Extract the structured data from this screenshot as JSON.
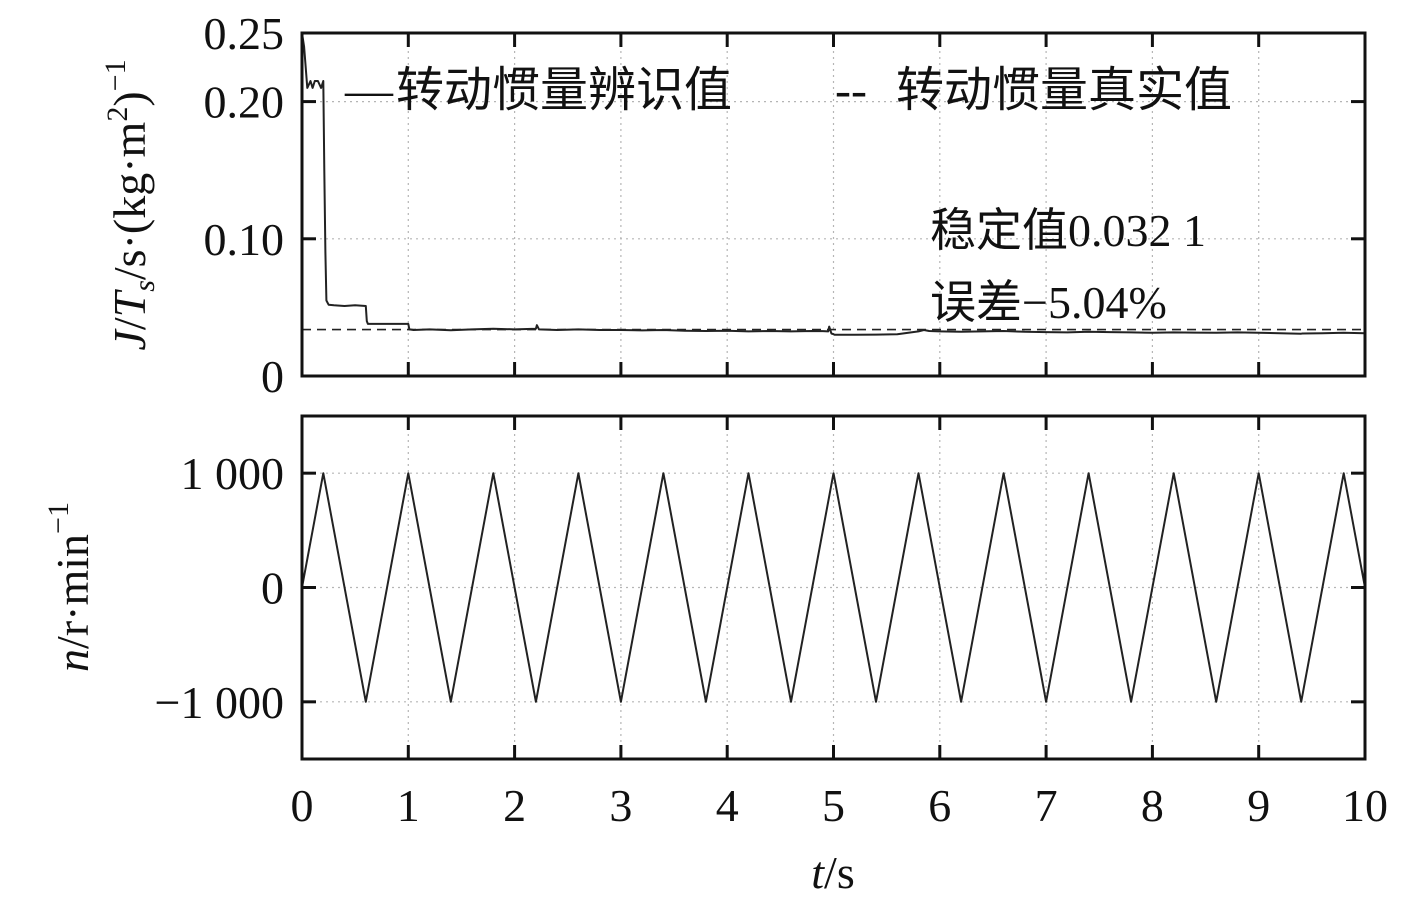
{
  "chart_data": [
    {
      "type": "line",
      "ylabel": "J/Ts/s·(kg·m2)−1",
      "ylabel_parts": {
        "j": "J",
        "slash1": "/",
        "t": "T",
        "t_sub": "s",
        "rest": "/s·(kg·m",
        "sq": "2",
        "close": ")",
        "inv": "−1"
      },
      "xlim": [
        0,
        10
      ],
      "ylim": [
        0,
        0.25
      ],
      "yticks": [
        {
          "value": 0,
          "label": "0"
        },
        {
          "value": 0.1,
          "label": "0.10"
        },
        {
          "value": 0.2,
          "label": "0.20"
        },
        {
          "value": 0.25,
          "label": "0.25"
        }
      ],
      "grid": true,
      "legend": {
        "placement": "top",
        "entries": [
          {
            "symbol": "—",
            "label": "转动惯量辨识值",
            "style": "solid"
          },
          {
            "symbol": "--",
            "label": "转动惯量真实值",
            "style": "dashed"
          }
        ]
      },
      "annotations": [
        "稳定值0.032 1",
        "误差−5.04%"
      ],
      "series": [
        {
          "style": "solid",
          "x": [
            0,
            0.02,
            0.05,
            0.08,
            0.1,
            0.12,
            0.15,
            0.18,
            0.2,
            0.21,
            0.22,
            0.23,
            0.25,
            0.3,
            0.4,
            0.5,
            0.6,
            0.61,
            0.62,
            0.8,
            0.95,
            1.0,
            1.01,
            1.05,
            1.2,
            1.4,
            1.6,
            1.8,
            2.0,
            2.2,
            2.21,
            2.23,
            2.4,
            2.6,
            2.8,
            3.0,
            3.2,
            3.4,
            3.6,
            3.8,
            4.0,
            4.2,
            4.4,
            4.6,
            4.8,
            4.9,
            4.95,
            4.96,
            4.98,
            5.0,
            5.01,
            5.2,
            5.4,
            5.6,
            5.8,
            5.85,
            5.9,
            6.0,
            6.2,
            6.4,
            6.6,
            6.8,
            7.0,
            7.2,
            7.4,
            7.6,
            7.8,
            8.0,
            8.2,
            8.4,
            8.6,
            8.8,
            9.0,
            9.2,
            9.4,
            9.41,
            9.6,
            9.8,
            10.0
          ],
          "y": [
            0.25,
            0.24,
            0.21,
            0.215,
            0.21,
            0.215,
            0.215,
            0.21,
            0.215,
            0.15,
            0.09,
            0.055,
            0.052,
            0.0515,
            0.051,
            0.0515,
            0.051,
            0.04,
            0.038,
            0.038,
            0.038,
            0.038,
            0.034,
            0.0335,
            0.034,
            0.0333,
            0.034,
            0.0345,
            0.034,
            0.0345,
            0.037,
            0.034,
            0.0335,
            0.034,
            0.0335,
            0.0335,
            0.0332,
            0.0335,
            0.033,
            0.0328,
            0.033,
            0.0325,
            0.0328,
            0.0325,
            0.0328,
            0.0327,
            0.0325,
            0.036,
            0.031,
            0.0305,
            0.03,
            0.03,
            0.0302,
            0.0305,
            0.0325,
            0.0335,
            0.0328,
            0.0325,
            0.0322,
            0.0325,
            0.0328,
            0.0322,
            0.032,
            0.0318,
            0.0322,
            0.032,
            0.0318,
            0.0315,
            0.0318,
            0.0316,
            0.0315,
            0.0318,
            0.0315,
            0.0312,
            0.0308,
            0.031,
            0.0312,
            0.0315,
            0.0312
          ]
        },
        {
          "style": "dashed",
          "x": [
            0,
            10
          ],
          "y": [
            0.0338,
            0.0338
          ]
        }
      ]
    },
    {
      "type": "line",
      "ylabel": "n/r·min−1",
      "ylabel_parts": {
        "n": "n",
        "rest": "/r·min",
        "inv": "−1"
      },
      "xlabel": "t/s",
      "xlabel_parts": {
        "t": "t",
        "rest": "/s"
      },
      "xlim": [
        0,
        10
      ],
      "ylim": [
        -1500,
        1500
      ],
      "yticks": [
        {
          "value": -1000,
          "label": "−1 000"
        },
        {
          "value": 0,
          "label": "0"
        },
        {
          "value": 1000,
          "label": "1 000"
        }
      ],
      "xticks": [
        {
          "value": 0,
          "label": "0"
        },
        {
          "value": 1,
          "label": "1"
        },
        {
          "value": 2,
          "label": "2"
        },
        {
          "value": 3,
          "label": "3"
        },
        {
          "value": 4,
          "label": "4"
        },
        {
          "value": 5,
          "label": "5"
        },
        {
          "value": 6,
          "label": "6"
        },
        {
          "value": 7,
          "label": "7"
        },
        {
          "value": 8,
          "label": "8"
        },
        {
          "value": 9,
          "label": "9"
        },
        {
          "value": 10,
          "label": "10"
        }
      ],
      "grid": true,
      "series": [
        {
          "style": "solid",
          "x": [
            0,
            0.2,
            0.6,
            1.0,
            1.4,
            1.8,
            2.2,
            2.6,
            3.0,
            3.4,
            3.8,
            4.2,
            4.6,
            5.0,
            5.4,
            5.8,
            6.2,
            6.6,
            7.0,
            7.4,
            7.8,
            8.2,
            8.6,
            9.0,
            9.4,
            9.8,
            10.0
          ],
          "y": [
            0,
            1000,
            -1000,
            1000,
            -1000,
            1000,
            -1000,
            1000,
            -1000,
            1000,
            -1000,
            1000,
            -1000,
            1000,
            -1000,
            1000,
            -1000,
            1000,
            -1000,
            1000,
            -1000,
            1000,
            -1000,
            1000,
            -1000,
            1000,
            0
          ]
        }
      ]
    }
  ]
}
